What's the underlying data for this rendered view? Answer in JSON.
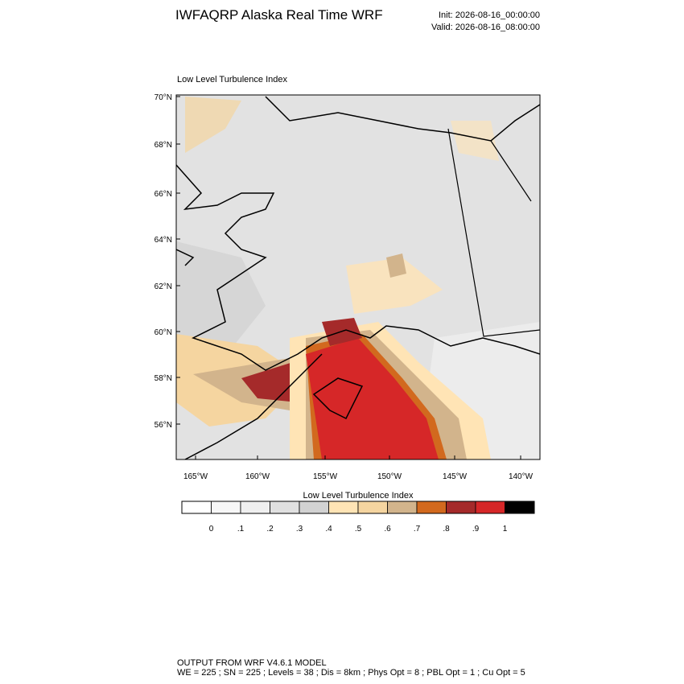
{
  "header": {
    "title": "IWFAQRP Alaska Real Time WRF",
    "init": "Init: 2026-08-16_00:00:00",
    "valid": "Valid: 2026-08-16_08:00:00"
  },
  "map": {
    "title": "Low Level Turbulence Index",
    "lat_labels": [
      "70°N",
      "68°N",
      "66°N",
      "64°N",
      "62°N",
      "60°N",
      "58°N",
      "56°N"
    ],
    "lon_labels": [
      "165°W",
      "160°W",
      "155°W",
      "150°W",
      "145°W",
      "140°W"
    ]
  },
  "colorbar": {
    "title": "Low Level Turbulence Index",
    "labels": [
      "0",
      ".1",
      ".2",
      ".3",
      ".4",
      ".5",
      ".6",
      ".7",
      ".8",
      ".9",
      "1"
    ],
    "colors": [
      "#ffffff",
      "#f7f7f7",
      "#efefef",
      "#e0e0e0",
      "#d2d2d2",
      "#ffe4b5",
      "#f5d5a0",
      "#d2b48c",
      "#d2691e",
      "#a52a2a",
      "#d62728",
      "#000000"
    ]
  },
  "footer": {
    "line1": "OUTPUT FROM WRF V4.6.1 MODEL",
    "line2": "WE = 225 ; SN = 225 ; Levels = 38 ; Dis = 8km ; Phys Opt = 8 ; PBL Opt = 1 ; Cu Opt = 5"
  }
}
